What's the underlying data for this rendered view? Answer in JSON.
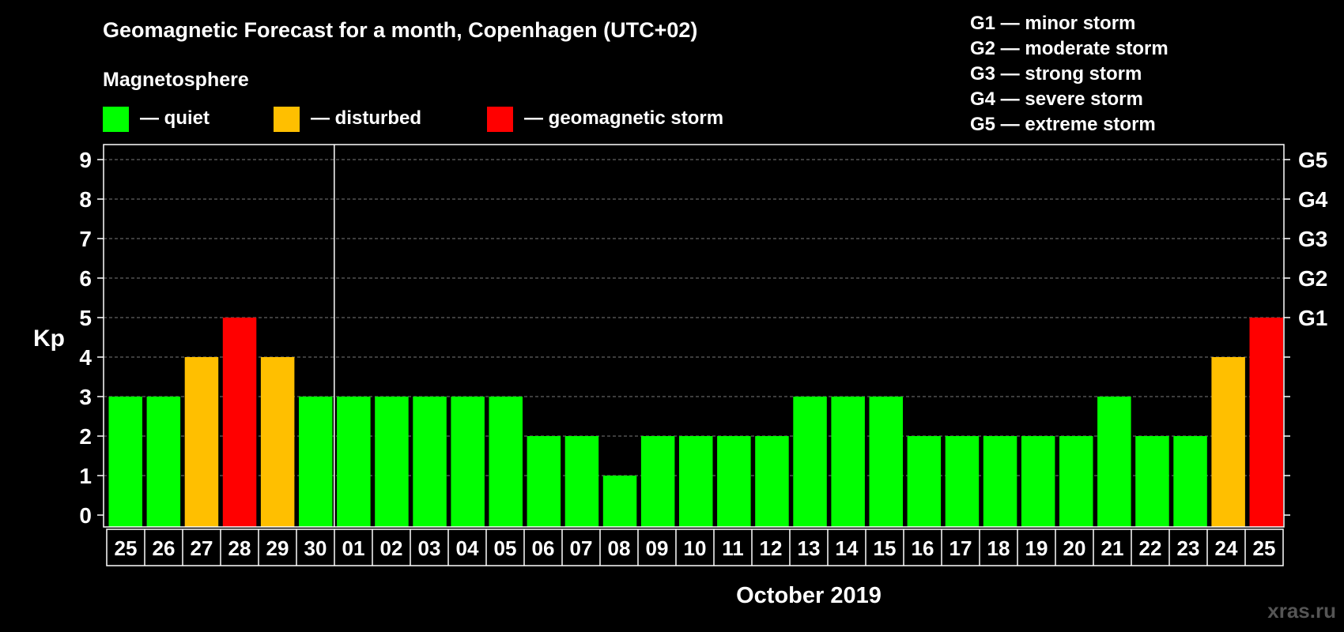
{
  "chart_data": {
    "type": "bar",
    "title": "Geomagnetic Forecast for a month, Copenhagen (UTC+02)",
    "legend_title": "Magnetosphere",
    "legend": [
      {
        "key": "quiet",
        "label": "— quiet",
        "color": "#00ff00"
      },
      {
        "key": "disturbed",
        "label": "— disturbed",
        "color": "#ffbf00"
      },
      {
        "key": "storm",
        "label": "— geomagnetic storm",
        "color": "#ff0000"
      }
    ],
    "storm_legend": [
      "G1 — minor storm",
      "G2 — moderate storm",
      "G3 — strong storm",
      "G4 — severe storm",
      "G5 — extreme storm"
    ],
    "ylabel": "Kp",
    "xlabel": "October 2019",
    "ylim": [
      0,
      9
    ],
    "yticks": [
      "0",
      "1",
      "2",
      "3",
      "4",
      "5",
      "6",
      "7",
      "8",
      "9"
    ],
    "right_ticks": [
      {
        "value": 5,
        "label": "G1"
      },
      {
        "value": 6,
        "label": "G2"
      },
      {
        "value": 7,
        "label": "G3"
      },
      {
        "value": 8,
        "label": "G4"
      },
      {
        "value": 9,
        "label": "G5"
      }
    ],
    "categories": [
      "25",
      "26",
      "27",
      "28",
      "29",
      "30",
      "01",
      "02",
      "03",
      "04",
      "05",
      "06",
      "07",
      "08",
      "09",
      "10",
      "11",
      "12",
      "13",
      "14",
      "15",
      "16",
      "17",
      "18",
      "19",
      "20",
      "21",
      "22",
      "23",
      "24",
      "25"
    ],
    "values": [
      3,
      3,
      4,
      5,
      4,
      3,
      3,
      3,
      3,
      3,
      3,
      2,
      2,
      1,
      2,
      2,
      2,
      2,
      3,
      3,
      3,
      2,
      2,
      2,
      2,
      2,
      3,
      2,
      2,
      4,
      5
    ],
    "month_separator_after_index": 5,
    "grid": true
  },
  "watermark": "xras.ru"
}
